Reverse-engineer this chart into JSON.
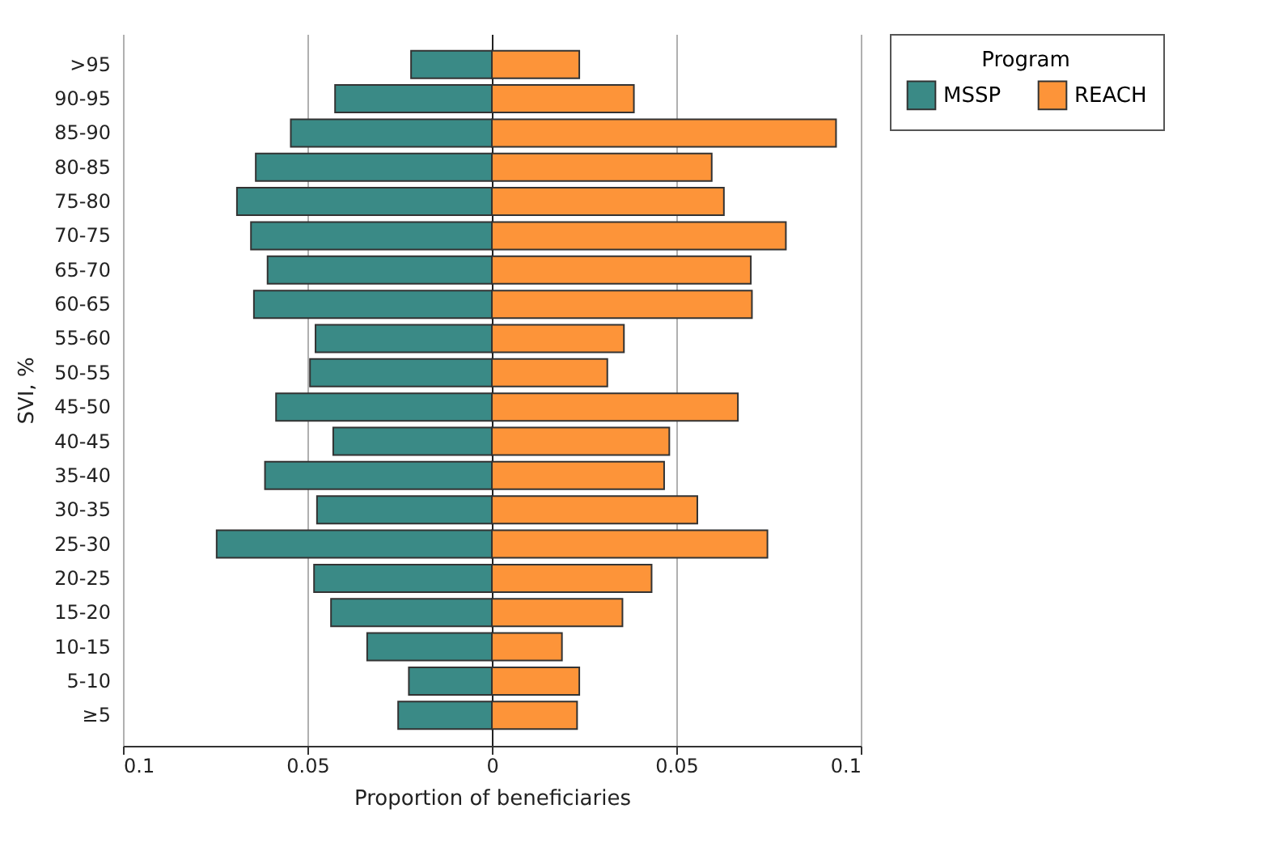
{
  "chart_data": {
    "type": "bar",
    "orientation": "horizontal",
    "stacked": true,
    "xlabel": "Proportion of beneficiaries",
    "ylabel": "SVI, %",
    "legend_title": "Program",
    "legend": "top right",
    "grid": "x",
    "categories": [
      ">95",
      "90-95",
      "85-90",
      "80-85",
      "75-80",
      "70-75",
      "65-70",
      "60-65",
      "55-60",
      "50-55",
      "45-50",
      "40-45",
      "35-40",
      "30-35",
      "25-30",
      "20-25",
      "15-20",
      "10-15",
      "5-10",
      "≥5"
    ],
    "xlim": [
      -0.1,
      0.1
    ],
    "xticks": [
      {
        "value": -0.1,
        "label": "0.1"
      },
      {
        "value": -0.05,
        "label": "0.05"
      },
      0,
      0.05,
      0.1
    ],
    "series": [
      {
        "name": "MSSP",
        "color": "#3a8a86",
        "values": [
          -0.0219,
          -0.0425,
          -0.0545,
          -0.064,
          -0.0691,
          -0.0653,
          -0.0608,
          -0.0645,
          -0.0478,
          -0.0493,
          -0.0585,
          -0.043,
          -0.0615,
          -0.0474,
          -0.0746,
          -0.0482,
          -0.0436,
          -0.0338,
          -0.0225,
          -0.0254
        ]
      },
      {
        "name": "REACH",
        "color": "#fd9439",
        "values": [
          0.0237,
          0.0385,
          0.0933,
          0.0596,
          0.0629,
          0.0797,
          0.0702,
          0.0705,
          0.0358,
          0.0313,
          0.0667,
          0.0481,
          0.0467,
          0.0557,
          0.0747,
          0.0433,
          0.0354,
          0.019,
          0.0237,
          0.0231
        ]
      }
    ]
  }
}
